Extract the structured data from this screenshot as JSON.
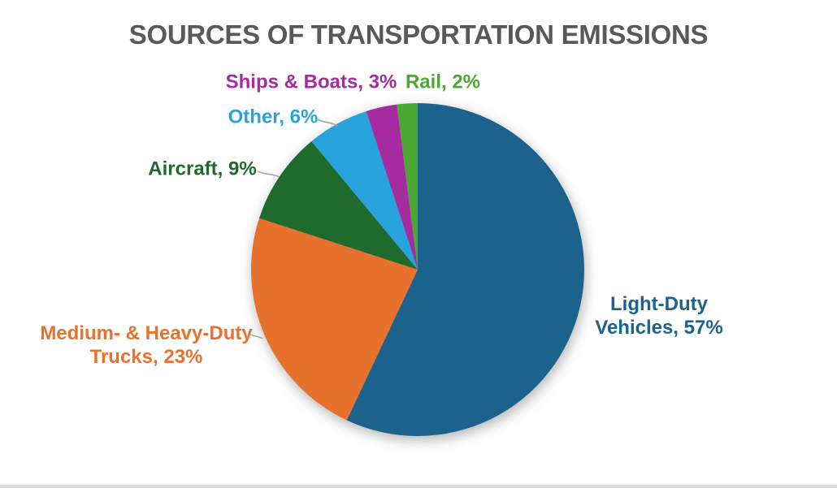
{
  "chart_data": {
    "type": "pie",
    "title": "SOURCES OF TRANSPORTATION EMISSIONS",
    "start_angle_deg": 0,
    "direction": "clockwise",
    "legend_position": "none",
    "labels_style": "outside-callouts",
    "categories": [
      "Light-Duty Vehicles",
      "Medium- & Heavy-Duty Trucks",
      "Aircraft",
      "Other",
      "Ships & Boats",
      "Rail"
    ],
    "values": [
      57,
      23,
      9,
      6,
      3,
      2
    ],
    "series": [
      {
        "name": "Light-Duty Vehicles",
        "value": 57,
        "color": "#1B628C",
        "label": "Light-Duty\nVehicles, 57%"
      },
      {
        "name": "Medium- & Heavy-Duty Trucks",
        "value": 23,
        "color": "#E7722E",
        "label": "Medium- & Heavy-Duty\nTrucks, 23%"
      },
      {
        "name": "Aircraft",
        "value": 9,
        "color": "#1E6B2D",
        "label": "Aircraft, 9%"
      },
      {
        "name": "Other",
        "value": 6,
        "color": "#29A3DC",
        "label": "Other, 6%"
      },
      {
        "name": "Ships & Boats",
        "value": 3,
        "color": "#A62BA0",
        "label": "Ships & Boats, 3%"
      },
      {
        "name": "Rail",
        "value": 2,
        "color": "#4CA733",
        "label": "Rail, 2%"
      }
    ]
  },
  "colors": {
    "title": "#595959",
    "leader_line": "#A6A6A6",
    "background": "#FFFFFF",
    "bottom_strip": "#D8D8D8"
  }
}
